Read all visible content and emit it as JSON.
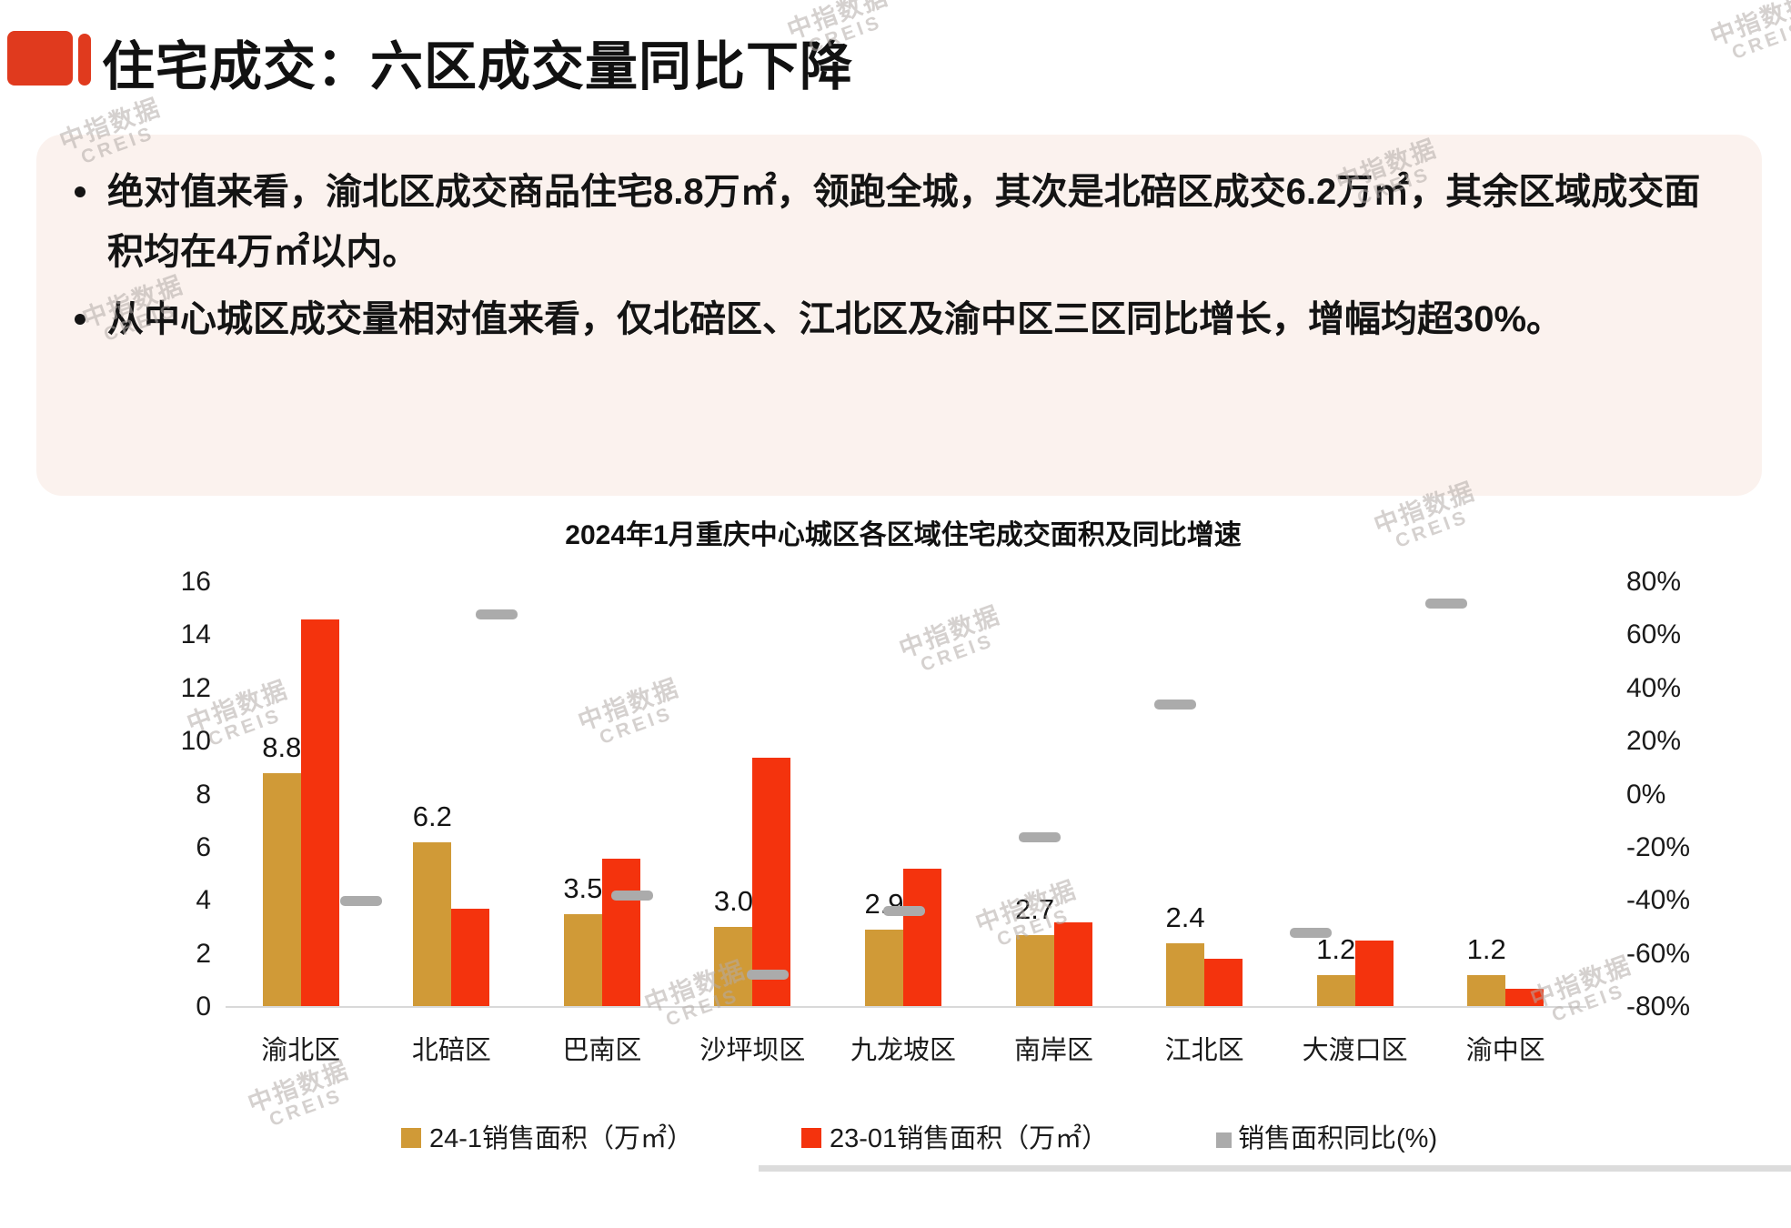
{
  "page": {
    "title": "住宅成交：六区成交量同比下降",
    "bullets": [
      "绝对值来看，渝北区成交商品住宅8.8万㎡，领跑全城，其次是北碚区成交6.2万㎡，其余区域成交面积均在4万㎡以内。",
      "从中心城区成交量相对值来看，仅北碚区、江北区及渝中区三区同比增长，增幅均超30%。"
    ],
    "watermark": {
      "line1": "中指数据",
      "line2": "CREIS"
    }
  },
  "colors": {
    "deco_red": "#E03A1E",
    "panel_pink": "#FBF2EE",
    "bar_gold": "#D09A37",
    "bar_red": "#F4330D",
    "marker_gray": "#ABABAB",
    "axis_line": "#D9D9D9",
    "bottom_rule": "#DCDCDC",
    "text": "#1A1A1A"
  },
  "chart_data": {
    "type": "bar",
    "subtype": "grouped bars with YoY percent markers on secondary axis",
    "title": "2024年1月重庆中心城区各区域住宅成交面积及同比增速",
    "categories": [
      "渝北区",
      "北碚区",
      "巴南区",
      "沙坪坝区",
      "九龙坡区",
      "南岸区",
      "江北区",
      "大渡口区",
      "渝中区"
    ],
    "series": [
      {
        "name": "24-1销售面积（万㎡）",
        "type": "bar",
        "color": "#D09A37",
        "values": [
          8.8,
          6.2,
          3.5,
          3.0,
          2.9,
          2.7,
          2.4,
          1.2,
          1.2
        ],
        "labels": [
          "8.8",
          "6.2",
          "3.5",
          "3.0",
          "2.9",
          "2.7",
          "2.4",
          "1.2",
          "1.2"
        ]
      },
      {
        "name": "23-01销售面积（万㎡）",
        "type": "bar",
        "color": "#F4330D",
        "values": [
          14.6,
          3.7,
          5.6,
          9.4,
          5.2,
          3.2,
          1.8,
          2.5,
          0.7
        ]
      },
      {
        "name": "销售面积同比(%)",
        "type": "marker",
        "color": "#ABABAB",
        "values": [
          -40,
          68,
          -38,
          -68,
          -44,
          -16,
          34,
          -52,
          72
        ]
      }
    ],
    "left_axis": {
      "label": "",
      "min": 0,
      "max": 16,
      "ticks": [
        "16",
        "14",
        "12",
        "10",
        "8",
        "6",
        "4",
        "2",
        "0"
      ]
    },
    "right_axis": {
      "label": "",
      "min": -80,
      "max": 80,
      "ticks": [
        "80%",
        "60%",
        "40%",
        "20%",
        "0%",
        "-20%",
        "-40%",
        "-60%",
        "-80%"
      ]
    },
    "gridlines": false,
    "legend_position": "bottom"
  }
}
